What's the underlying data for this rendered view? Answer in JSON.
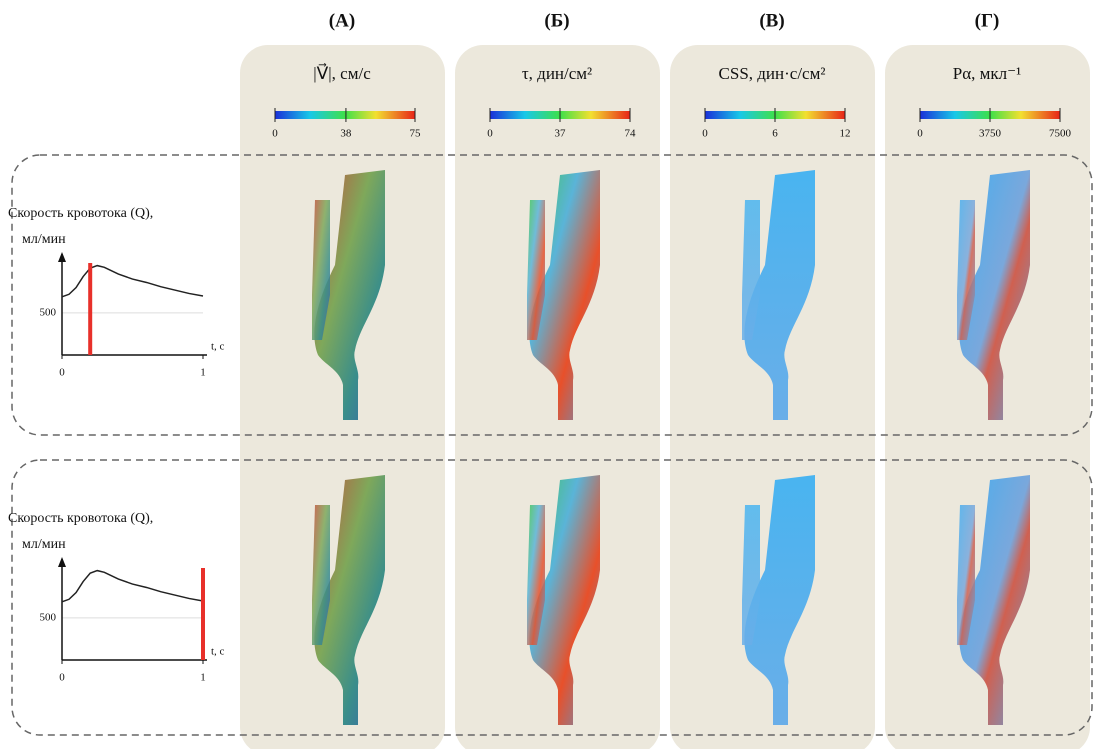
{
  "columns": [
    {
      "letter": "(А)",
      "title": "|V⃗|, см/с",
      "colorbar": {
        "range": [
          0,
          75
        ],
        "ticks": [
          0,
          38,
          75
        ]
      }
    },
    {
      "letter": "(Б)",
      "title": "τ, дин/см²",
      "colorbar": {
        "range": [
          0,
          74
        ],
        "ticks": [
          0,
          37,
          74
        ]
      }
    },
    {
      "letter": "(В)",
      "title": "CSS, дин·с/см²",
      "colorbar": {
        "range": [
          0,
          12
        ],
        "ticks": [
          0,
          6,
          12
        ]
      }
    },
    {
      "letter": "(Г)",
      "title": "Pα, мкл⁻¹",
      "colorbar": {
        "range": [
          0,
          7500
        ],
        "ticks": [
          0,
          3750,
          7500
        ]
      }
    }
  ],
  "rows": [
    {
      "ylabel": [
        "Скорость кровотока (Q),",
        "мл/мин"
      ],
      "chart": {
        "type": "line",
        "xlabel": "t, с",
        "xlim": [
          0,
          1
        ],
        "xticks": [
          0,
          1
        ],
        "ylim": [
          0,
          1150
        ],
        "yticks": [
          500
        ],
        "x": [
          0,
          0.05,
          0.1,
          0.15,
          0.2,
          0.25,
          0.3,
          0.4,
          0.5,
          0.6,
          0.7,
          0.8,
          0.9,
          1
        ],
        "values": [
          690,
          720,
          800,
          930,
          1030,
          1060,
          1040,
          960,
          900,
          860,
          810,
          770,
          730,
          700
        ],
        "marker_t": 0.2,
        "marker_color": "#e8302a"
      }
    },
    {
      "ylabel": [
        "Скорость кровотока (Q),",
        "мл/мин"
      ],
      "chart": {
        "type": "line",
        "xlabel": "t, с",
        "xlim": [
          0,
          1
        ],
        "xticks": [
          0,
          1
        ],
        "ylim": [
          0,
          1150
        ],
        "yticks": [
          500
        ],
        "x": [
          0,
          0.05,
          0.1,
          0.15,
          0.2,
          0.25,
          0.3,
          0.4,
          0.5,
          0.6,
          0.7,
          0.8,
          0.9,
          1
        ],
        "values": [
          690,
          720,
          800,
          930,
          1030,
          1060,
          1040,
          960,
          900,
          860,
          810,
          770,
          730,
          700
        ],
        "marker_t": 1,
        "marker_color": "#e8302a"
      }
    }
  ]
}
